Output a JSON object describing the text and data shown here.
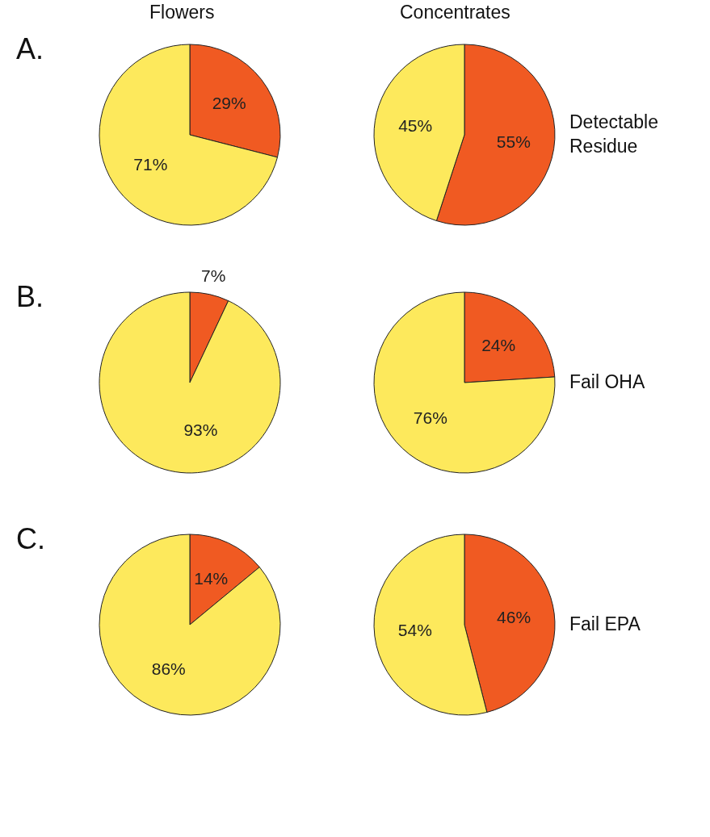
{
  "chart_data": [
    {
      "type": "pie",
      "title": "Flowers",
      "categories": [
        null,
        null
      ],
      "values": [
        29,
        71
      ],
      "colors": [
        "#f05a22",
        "#fde95c"
      ],
      "value_labels": [
        "29%",
        "71%"
      ],
      "annotations": [
        "A."
      ]
    },
    {
      "type": "pie",
      "title": "Concentrates",
      "categories": [
        null,
        null
      ],
      "values": [
        55,
        45
      ],
      "colors": [
        "#f05a22",
        "#fde95c"
      ],
      "value_labels": [
        "55%",
        "45%"
      ],
      "annotations": [
        "Detectable Residue"
      ]
    },
    {
      "type": "pie",
      "categories": [
        null,
        null
      ],
      "values": [
        7,
        93
      ],
      "colors": [
        "#f05a22",
        "#fde95c"
      ],
      "value_labels": [
        "7%",
        "93%"
      ],
      "annotations": [
        "B."
      ]
    },
    {
      "type": "pie",
      "categories": [
        null,
        null
      ],
      "values": [
        24,
        76
      ],
      "colors": [
        "#f05a22",
        "#fde95c"
      ],
      "value_labels": [
        "24%",
        "76%"
      ],
      "annotations": [
        "Fail OHA"
      ]
    },
    {
      "type": "pie",
      "categories": [
        null,
        null
      ],
      "values": [
        14,
        86
      ],
      "colors": [
        "#f05a22",
        "#fde95c"
      ],
      "value_labels": [
        "14%",
        "86%"
      ],
      "annotations": [
        "C."
      ]
    },
    {
      "type": "pie",
      "categories": [
        null,
        null
      ],
      "values": [
        46,
        54
      ],
      "colors": [
        "#f05a22",
        "#fde95c"
      ],
      "value_labels": [
        "46%",
        "54%"
      ],
      "annotations": [
        "Fail EPA"
      ]
    }
  ]
}
